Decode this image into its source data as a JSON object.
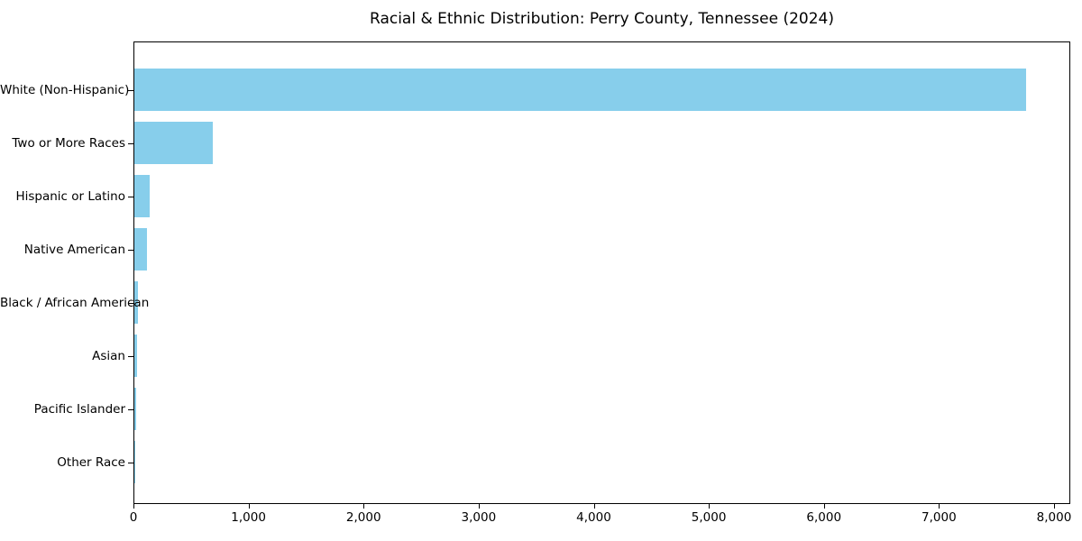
{
  "chart_data": {
    "type": "bar",
    "orientation": "horizontal",
    "title": "Racial & Ethnic Distribution: Perry County, Tennessee (2024)",
    "categories": [
      "White (Non-Hispanic)",
      "Two or More Races",
      "Hispanic or Latino",
      "Native American",
      "Black / African American",
      "Asian",
      "Pacific Islander",
      "Other Race"
    ],
    "values": [
      7750,
      680,
      130,
      110,
      30,
      24,
      19,
      4
    ],
    "xlabel": "",
    "ylabel": "",
    "xlim": [
      0,
      8000
    ],
    "xticks": [
      0,
      1000,
      2000,
      3000,
      4000,
      5000,
      6000,
      7000,
      8000
    ],
    "xtick_labels": [
      "0",
      "1,000",
      "2,000",
      "3,000",
      "4,000",
      "5,000",
      "6,000",
      "7,000",
      "8,000"
    ],
    "bar_color": "#87CEEB",
    "axis_color": "#000000",
    "background_color": "#FFFFFF",
    "grid": false,
    "legend_position": "none"
  }
}
